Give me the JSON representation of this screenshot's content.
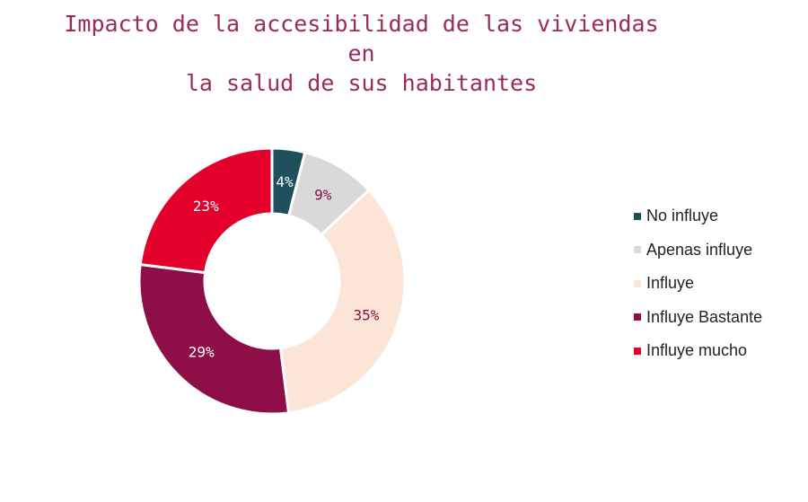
{
  "chart_data": {
    "type": "pie",
    "variant": "donut",
    "title_lines": [
      "Impacto de la accesibilidad de las viviendas",
      "en",
      "la salud de sus habitantes"
    ],
    "categories": [
      "No influye",
      "Apenas influye",
      "Influye",
      "Influye Bastante",
      "Influye mucho"
    ],
    "values": [
      4,
      9,
      35,
      29,
      23
    ],
    "value_labels": [
      "4%",
      "9%",
      "35%",
      "29%",
      "23%"
    ],
    "colors": [
      "#1e4f5c",
      "#d9d9d9",
      "#fbe5d6",
      "#8e0f48",
      "#e3002b"
    ],
    "label_colors": [
      "#ffffff",
      "#8e0f48",
      "#8e0f48",
      "#ffffff",
      "#ffffff"
    ],
    "legend_position": "right"
  }
}
